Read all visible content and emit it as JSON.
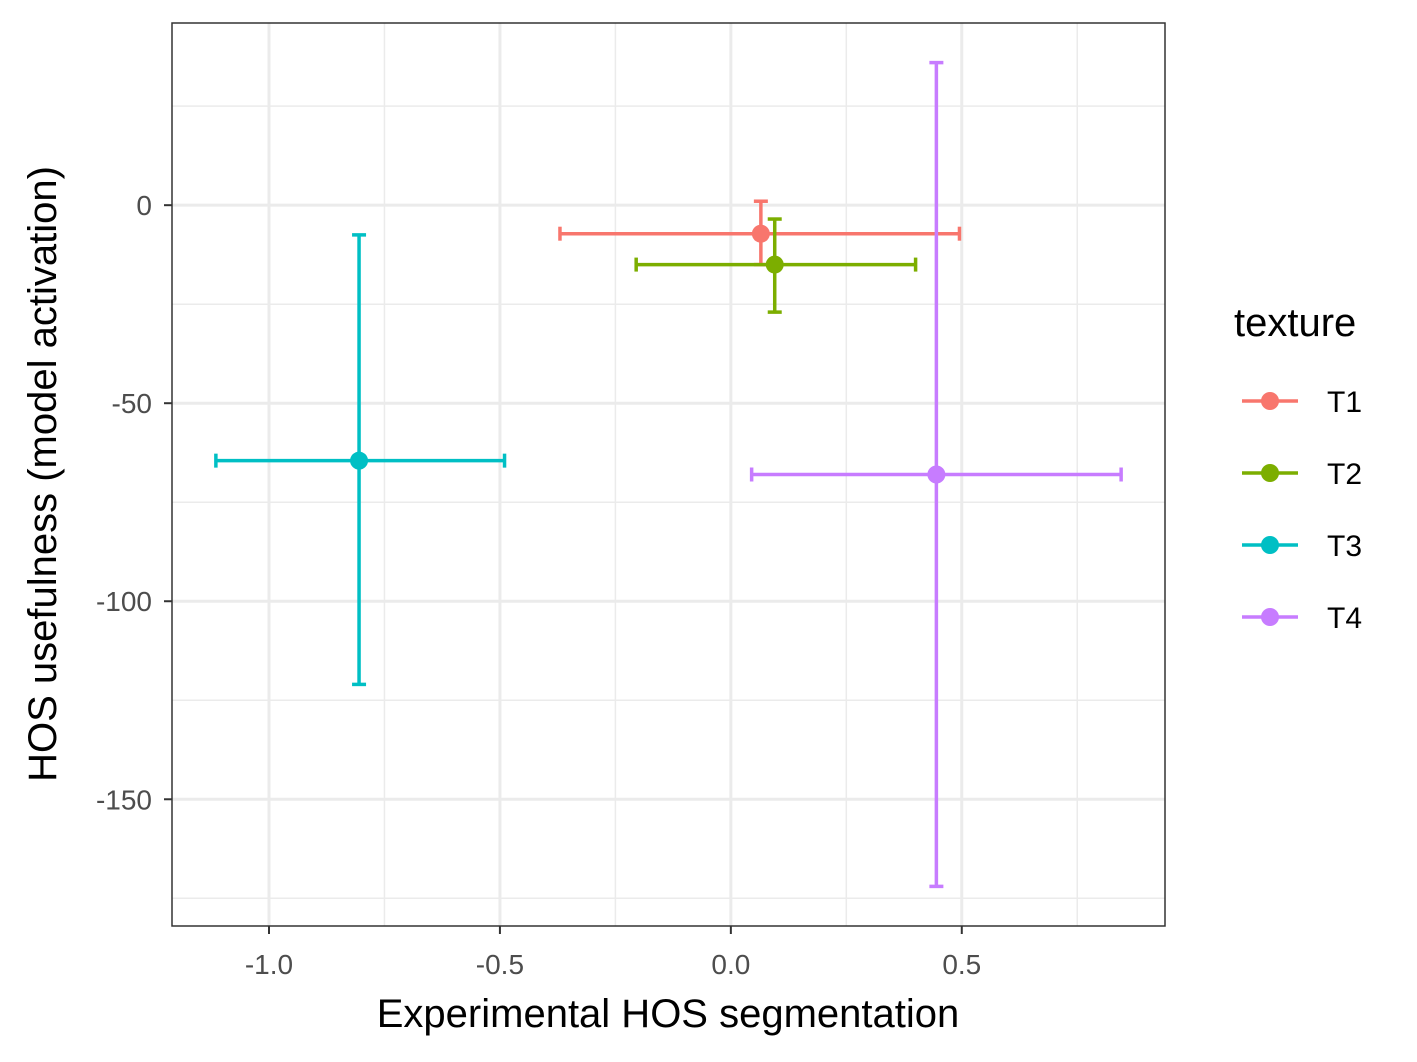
{
  "chart_data": {
    "type": "scatter",
    "title": "",
    "xlabel": "Experimental HOS segmentation",
    "ylabel": "HOS usefulness (model activation)",
    "xlim": [
      -1.21,
      0.94
    ],
    "ylim": [
      -182,
      46
    ],
    "x_major_ticks": [
      -1.0,
      -0.5,
      0.0,
      0.5
    ],
    "x_tick_labels": [
      "-1.0",
      "-0.5",
      "0.0",
      "0.5"
    ],
    "x_minor_ticks": [
      -0.75,
      -0.25,
      0.25,
      0.75
    ],
    "y_major_ticks": [
      0,
      -50,
      -100,
      -150
    ],
    "y_tick_labels": [
      "0",
      "-50",
      "-100",
      "-150"
    ],
    "y_minor_ticks": [
      25,
      -25,
      -75,
      -125,
      -175
    ],
    "grid": true,
    "legend": {
      "title": "texture",
      "position": "right"
    },
    "series": [
      {
        "name": "T1",
        "color": "#F8766D",
        "x": 0.065,
        "y": -7.2,
        "xmin": -0.37,
        "xmax": 0.495,
        "ymin": -15,
        "ymax": 1
      },
      {
        "name": "T2",
        "color": "#7CAE00",
        "x": 0.095,
        "y": -15,
        "xmin": -0.205,
        "xmax": 0.4,
        "ymin": -27,
        "ymax": -3.5
      },
      {
        "name": "T3",
        "color": "#00BFC4",
        "x": -0.805,
        "y": -64.5,
        "xmin": -1.115,
        "xmax": -0.49,
        "ymin": -121,
        "ymax": -7.5
      },
      {
        "name": "T4",
        "color": "#C77CFF",
        "x": 0.445,
        "y": -68,
        "xmin": 0.045,
        "xmax": 0.845,
        "ymin": -172,
        "ymax": 36
      }
    ]
  }
}
